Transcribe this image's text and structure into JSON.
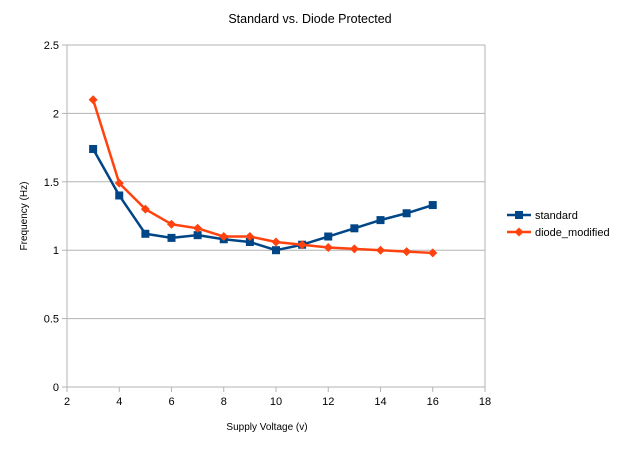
{
  "chart_data": {
    "type": "line",
    "title": "Standard vs. Diode Protected",
    "xlabel": "Supply Voltage (v)",
    "ylabel": "Frequency (Hz)",
    "xlim": [
      2,
      18
    ],
    "ylim": [
      0,
      2.5
    ],
    "x_ticks": [
      2,
      4,
      6,
      8,
      10,
      12,
      14,
      16,
      18
    ],
    "y_ticks": [
      0,
      0.5,
      1,
      1.5,
      2,
      2.5
    ],
    "x_tick_labels": [
      "2",
      "4",
      "6",
      "8",
      "10",
      "12",
      "14",
      "16",
      "18"
    ],
    "y_tick_labels": [
      "0",
      "0.5",
      "1",
      "1.5",
      "2",
      "2.5"
    ],
    "grid": "horizontal",
    "legend_position": "right",
    "x": [
      3,
      4,
      5,
      6,
      7,
      8,
      9,
      10,
      11,
      12,
      13,
      14,
      15,
      16
    ],
    "series": [
      {
        "name": "standard",
        "color": "#004586",
        "marker": "square",
        "values": [
          1.74,
          1.4,
          1.12,
          1.09,
          1.11,
          1.08,
          1.06,
          1.0,
          1.04,
          1.1,
          1.16,
          1.22,
          1.27,
          1.33
        ]
      },
      {
        "name": "diode_modified",
        "color": "#ff420e",
        "marker": "diamond",
        "values": [
          2.1,
          1.49,
          1.3,
          1.19,
          1.16,
          1.1,
          1.1,
          1.06,
          1.04,
          1.02,
          1.01,
          1.0,
          0.99,
          0.98
        ]
      }
    ]
  }
}
